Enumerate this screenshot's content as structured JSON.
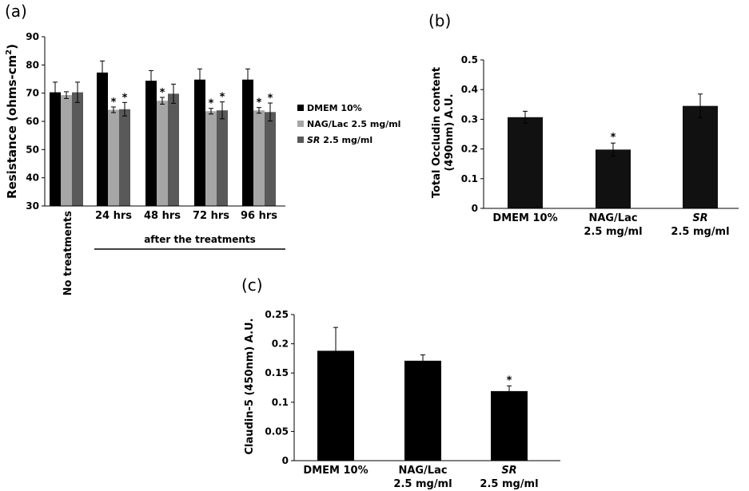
{
  "chart_data": [
    {
      "panel": "(a)",
      "type": "bar",
      "ylabel_main": "Resistance (ohms-cm",
      "ylabel_sup": "2",
      "ylabel_close": ")",
      "ylim": [
        30,
        90
      ],
      "yticks": [
        "30",
        "40",
        "50",
        "60",
        "70",
        "80",
        "90"
      ],
      "categories": [
        "No treatments",
        "24 hrs",
        "48 hrs",
        "72 hrs",
        "96 hrs"
      ],
      "group_label": "after the treatments",
      "legend_position": "right",
      "series": [
        {
          "name": "DMEM 10%",
          "color": "#000000",
          "values": [
            70.3,
            77.3,
            74.4,
            74.8,
            74.8
          ],
          "errors": [
            3.6,
            4.1,
            3.6,
            3.8,
            3.8
          ]
        },
        {
          "name": "NAG/Lac 2.5 mg/ml",
          "color": "#a6a6a6",
          "values": [
            69.3,
            64.1,
            67.3,
            63.6,
            63.9
          ],
          "errors": [
            1.2,
            1.0,
            1.2,
            1.0,
            1.0
          ]
        },
        {
          "name_italic": "SR",
          "name_rest": " 2.5 mg/ml",
          "color": "#595959",
          "values": [
            70.3,
            64.3,
            69.8,
            63.9,
            63.3
          ],
          "errors": [
            3.6,
            2.4,
            3.4,
            3.0,
            3.2
          ]
        }
      ],
      "significance": [
        {
          "category": 1,
          "series": 1,
          "mark": "*"
        },
        {
          "category": 1,
          "series": 2,
          "mark": "*"
        },
        {
          "category": 2,
          "series": 1,
          "mark": "*"
        },
        {
          "category": 3,
          "series": 1,
          "mark": "*"
        },
        {
          "category": 3,
          "series": 2,
          "mark": "*"
        },
        {
          "category": 4,
          "series": 1,
          "mark": "*"
        },
        {
          "category": 4,
          "series": 2,
          "mark": "*"
        }
      ]
    },
    {
      "panel": "(b)",
      "type": "bar",
      "ylabel_line1": "Total Occludin content",
      "ylabel_line2": "(490nm) A.U.",
      "ylim": [
        0,
        0.5
      ],
      "yticks": [
        "0",
        "0.1",
        "0.2",
        "0.3",
        "0.4",
        "0.5"
      ],
      "categories": [
        {
          "line1": "DMEM 10%",
          "line2": ""
        },
        {
          "line1": "NAG/Lac",
          "line2": "2.5 mg/ml"
        },
        {
          "line1": "SR",
          "line2": "2.5 mg/ml",
          "italic_line1": true
        }
      ],
      "values": [
        0.307,
        0.198,
        0.345
      ],
      "errors": [
        0.02,
        0.022,
        0.04
      ],
      "color": "#111111",
      "significance": [
        {
          "category": 1,
          "mark": "*"
        }
      ]
    },
    {
      "panel": "(c)",
      "type": "bar",
      "ylabel": "Claudin-5 (450nm) A.U.",
      "ylim": [
        0,
        0.25
      ],
      "yticks": [
        "0",
        "0.05",
        "0.1",
        "0.15",
        "0.2",
        "0.25"
      ],
      "categories": [
        {
          "line1": "DMEM 10%",
          "line2": ""
        },
        {
          "line1": "NAG/Lac",
          "line2": "2.5 mg/ml"
        },
        {
          "line1": "SR",
          "line2": "2.5 mg/ml",
          "italic_line1": true
        }
      ],
      "values": [
        0.188,
        0.171,
        0.119
      ],
      "errors": [
        0.04,
        0.01,
        0.009
      ],
      "color": "#000000",
      "significance": [
        {
          "category": 2,
          "mark": "*"
        }
      ]
    }
  ]
}
